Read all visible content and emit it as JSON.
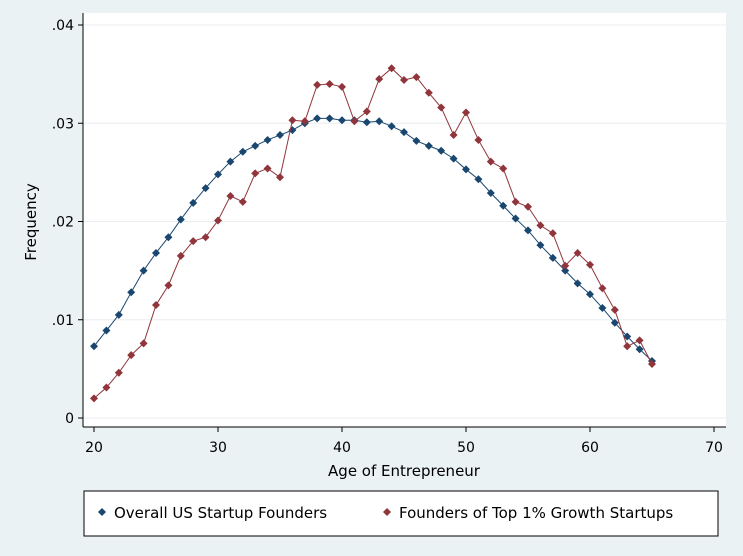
{
  "chart_data": {
    "type": "line",
    "title": "",
    "xlabel": "Age of Entrepreneur",
    "ylabel": "Frequency",
    "xlim": [
      20,
      70
    ],
    "ylim": [
      0,
      0.04
    ],
    "x_ticks": [
      20,
      30,
      40,
      50,
      60,
      70
    ],
    "x_tick_labels": [
      "20",
      "30",
      "40",
      "50",
      "60",
      "70"
    ],
    "y_ticks": [
      0,
      0.01,
      0.02,
      0.03,
      0.04
    ],
    "y_tick_labels": [
      "0",
      ".01",
      ".02",
      ".03",
      ".04"
    ],
    "grid": "horizontal",
    "legend_position": "bottom",
    "x": [
      20,
      21,
      22,
      23,
      24,
      25,
      26,
      27,
      28,
      29,
      30,
      31,
      32,
      33,
      34,
      35,
      36,
      37,
      38,
      39,
      40,
      41,
      42,
      43,
      44,
      45,
      46,
      47,
      48,
      49,
      50,
      51,
      52,
      53,
      54,
      55,
      56,
      57,
      58,
      59,
      60,
      61,
      62,
      63,
      64,
      65
    ],
    "series": [
      {
        "name": "Overall US Startup Founders",
        "color": "#1a476f",
        "values": [
          0.0073,
          0.0089,
          0.0105,
          0.0128,
          0.015,
          0.0168,
          0.0184,
          0.0202,
          0.0219,
          0.0234,
          0.0248,
          0.0261,
          0.0271,
          0.0277,
          0.0283,
          0.0288,
          0.0293,
          0.03,
          0.0305,
          0.0305,
          0.0303,
          0.0303,
          0.0301,
          0.0302,
          0.0297,
          0.0291,
          0.0282,
          0.0277,
          0.0272,
          0.0264,
          0.0253,
          0.0243,
          0.0229,
          0.0216,
          0.0203,
          0.0191,
          0.0176,
          0.0163,
          0.015,
          0.0137,
          0.0126,
          0.0112,
          0.0097,
          0.0083,
          0.007,
          0.0058
        ]
      },
      {
        "name": "Founders of Top 1% Growth Startups",
        "color": "#90353b",
        "values": [
          0.002,
          0.0031,
          0.0046,
          0.0064,
          0.0076,
          0.0115,
          0.0135,
          0.0165,
          0.018,
          0.0184,
          0.0201,
          0.0226,
          0.022,
          0.0249,
          0.0254,
          0.0245,
          0.0303,
          0.0302,
          0.0339,
          0.034,
          0.0337,
          0.0302,
          0.0312,
          0.0345,
          0.0356,
          0.0344,
          0.0347,
          0.0331,
          0.0316,
          0.0288,
          0.0311,
          0.0283,
          0.0261,
          0.0254,
          0.022,
          0.0215,
          0.0196,
          0.0188,
          0.0155,
          0.0168,
          0.0156,
          0.0132,
          0.011,
          0.0073,
          0.0079,
          0.0055
        ]
      }
    ]
  }
}
